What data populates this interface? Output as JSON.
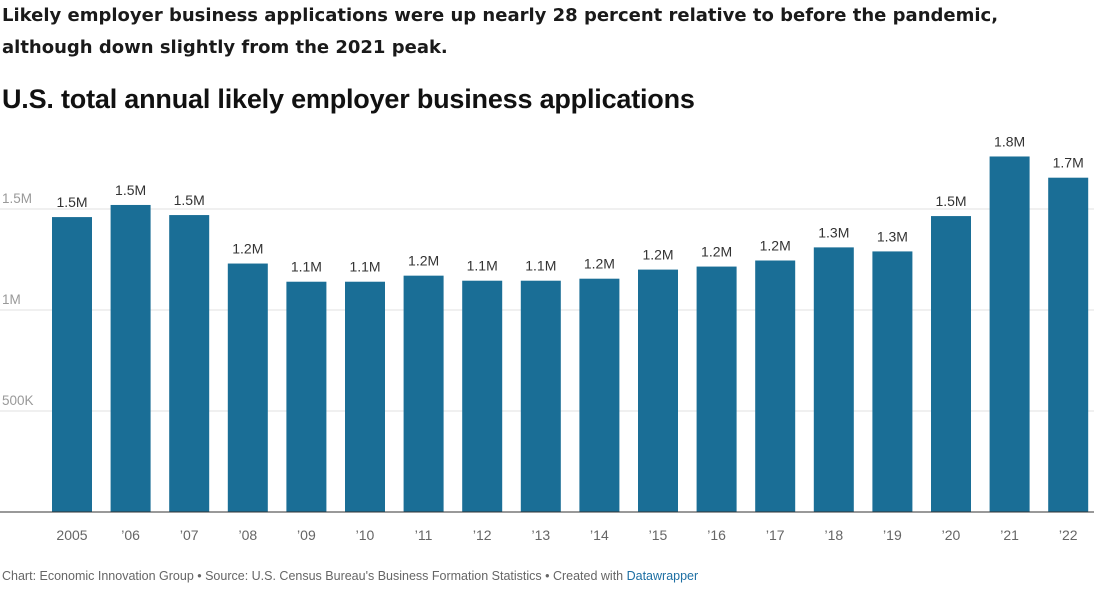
{
  "headline": "Likely employer business applications were up nearly 28 percent relative to before the pandemic, although down slightly from the 2021 peak.",
  "chart_data": {
    "type": "bar",
    "title": "U.S. total annual likely employer business applications",
    "categories": [
      "2005",
      "’06",
      "’07",
      "’08",
      "’09",
      "’10",
      "’11",
      "’12",
      "’13",
      "’14",
      "’15",
      "’16",
      "’17",
      "’18",
      "’19",
      "’20",
      "’21",
      "’22"
    ],
    "values": [
      1460000,
      1520000,
      1470000,
      1230000,
      1140000,
      1140000,
      1170000,
      1145000,
      1145000,
      1155000,
      1200000,
      1215000,
      1245000,
      1310000,
      1290000,
      1465000,
      1760000,
      1655000
    ],
    "data_labels": [
      "1.5M",
      "1.5M",
      "1.5M",
      "1.2M",
      "1.1M",
      "1.1M",
      "1.2M",
      "1.1M",
      "1.1M",
      "1.2M",
      "1.2M",
      "1.2M",
      "1.2M",
      "1.3M",
      "1.3M",
      "1.5M",
      "1.8M",
      "1.7M"
    ],
    "y_ticks": [
      500000,
      1000000,
      1500000
    ],
    "y_tick_labels": [
      "500K",
      "1M",
      "1.5M"
    ],
    "ylim": [
      0,
      1800000
    ],
    "xlabel": "",
    "ylabel": "",
    "grid": true,
    "legend": "none",
    "bar_color": "#1a6e96"
  },
  "footer": {
    "prefix": "Chart: Economic Innovation Group • Source: U.S. Census Bureau's Business Formation Statistics • Created with ",
    "link": "Datawrapper"
  }
}
